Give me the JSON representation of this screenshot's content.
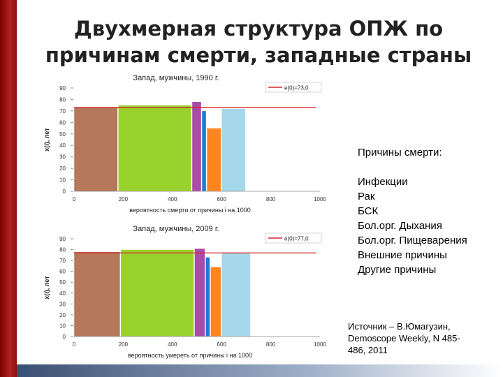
{
  "slide": {
    "title_line1": "Двухмерная структура ОПЖ по",
    "title_line2": "причинам смерти, западные страны"
  },
  "legend": {
    "heading": "Причины смерти:",
    "items": [
      "Инфекции",
      "Рак",
      "БСК",
      "Бол.орг. Дыхания",
      "Бол.орг. Пищеварения",
      "Внешние причины",
      "Другие причины"
    ]
  },
  "source": {
    "line1": "Источник – В.Юмагузин,",
    "line2": "Demoscope Weekly, N 485-",
    "line3": "486, 2011"
  },
  "chart_data": [
    {
      "type": "bar",
      "title": "Запад, мужчины, 1990 г.",
      "xlabel": "вероятность смерти от причины i на 1000",
      "ylabel": "x(i), лет",
      "xlim": [
        0,
        1000
      ],
      "ylim": [
        0,
        90
      ],
      "xticks": [
        0,
        200,
        400,
        600,
        800,
        1000
      ],
      "yticks": [
        0,
        10,
        20,
        30,
        40,
        50,
        60,
        70,
        80,
        90
      ],
      "reference_line": {
        "label": "e(0)=73,0",
        "value": 73.0,
        "color": "#d62728"
      },
      "bars": [
        {
          "x0": 0,
          "x1": 180,
          "y": 73,
          "color": "#b5785a"
        },
        {
          "x0": 180,
          "x1": 480,
          "y": 75,
          "color": "#99d22d"
        },
        {
          "x0": 480,
          "x1": 520,
          "y": 78,
          "color": "#a84ca8"
        },
        {
          "x0": 520,
          "x1": 540,
          "y": 70,
          "color": "#1f7bd1"
        },
        {
          "x0": 540,
          "x1": 600,
          "y": 55,
          "color": "#ff8521"
        },
        {
          "x0": 600,
          "x1": 700,
          "y": 72,
          "color": "#a6d8ec"
        }
      ]
    },
    {
      "type": "bar",
      "title": "Запад, мужчины, 2009 г.",
      "xlabel": "вероятность умереть от причины i на 1000",
      "ylabel": "x(i), лет",
      "xlim": [
        0,
        1000
      ],
      "ylim": [
        0,
        90
      ],
      "xticks": [
        0,
        200,
        400,
        600,
        800,
        1000
      ],
      "yticks": [
        0,
        10,
        20,
        30,
        40,
        50,
        60,
        70,
        80,
        90
      ],
      "reference_line": {
        "label": "e(0)=77,0",
        "value": 77.0,
        "color": "#d62728"
      },
      "bars": [
        {
          "x0": 0,
          "x1": 190,
          "y": 78,
          "color": "#b5785a"
        },
        {
          "x0": 190,
          "x1": 490,
          "y": 80,
          "color": "#99d22d"
        },
        {
          "x0": 490,
          "x1": 535,
          "y": 81,
          "color": "#a84ca8"
        },
        {
          "x0": 535,
          "x1": 555,
          "y": 73,
          "color": "#1f7bd1"
        },
        {
          "x0": 555,
          "x1": 600,
          "y": 64,
          "color": "#ff8521"
        },
        {
          "x0": 600,
          "x1": 720,
          "y": 77,
          "color": "#a6d8ec"
        }
      ]
    }
  ]
}
